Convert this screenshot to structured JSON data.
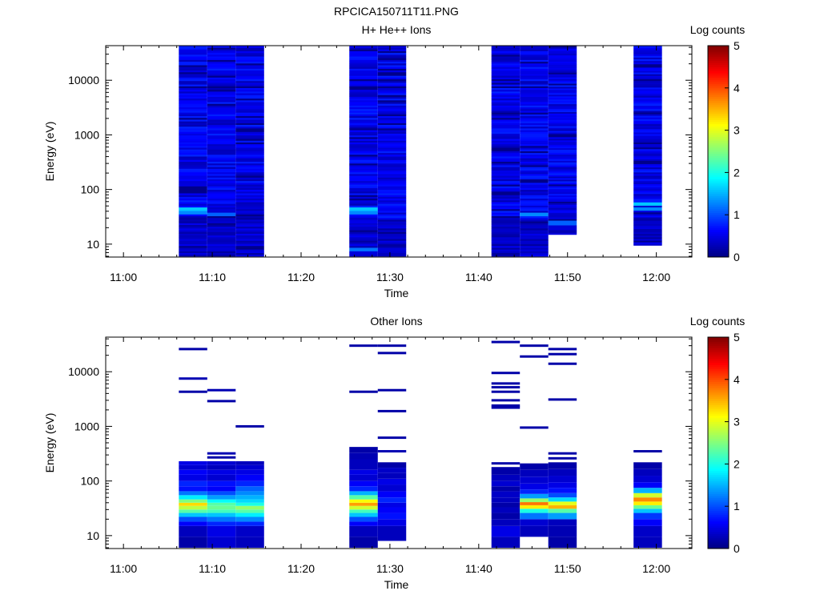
{
  "figure_title": "RPCICA150711T11.PNG",
  "colors": {
    "background": "#ffffff",
    "axis": "#000000",
    "colormap": "jet"
  },
  "chart_data": [
    {
      "type": "heatmap",
      "title": "H+ He++ Ions",
      "xlabel": "Time",
      "ylabel": "Energy (eV)",
      "yscale": "log",
      "xlim": [
        "10:58",
        "12:04"
      ],
      "ylim": [
        5.8,
        43000
      ],
      "x_ticks": [
        "11:00",
        "11:10",
        "11:20",
        "11:30",
        "11:40",
        "11:50",
        "12:00"
      ],
      "y_ticks": [
        "10",
        "100",
        "1000",
        "10000"
      ],
      "colorbar": {
        "label": "Log counts",
        "range": [
          0,
          5
        ],
        "ticks": [
          "0",
          "1",
          "2",
          "3",
          "4",
          "5"
        ]
      },
      "columns": [
        {
          "start": "11:06:14",
          "end": "11:09:26",
          "emin": 6,
          "emax": 43000,
          "peaks": [
            {
              "e": 45,
              "v": 1.6
            },
            {
              "e": 38,
              "v": 1.3
            }
          ]
        },
        {
          "start": "11:09:26",
          "end": "11:12:38",
          "emin": 6,
          "emax": 43000,
          "peaks": [
            {
              "e": 35,
              "v": 1.1
            }
          ]
        },
        {
          "start": "11:12:38",
          "end": "11:15:50",
          "emin": 6,
          "emax": 43000,
          "peaks": []
        },
        {
          "start": "11:25:26",
          "end": "11:28:38",
          "emin": 6,
          "emax": 43000,
          "peaks": [
            {
              "e": 45,
              "v": 1.6
            },
            {
              "e": 38,
              "v": 1.3
            },
            {
              "e": 8,
              "v": 1.2
            }
          ]
        },
        {
          "start": "11:28:38",
          "end": "11:31:50",
          "emin": 6,
          "emax": 43000,
          "peaks": []
        },
        {
          "start": "11:41:26",
          "end": "11:44:38",
          "emin": 6,
          "emax": 43000,
          "peaks": []
        },
        {
          "start": "11:44:38",
          "end": "11:47:50",
          "emin": 6,
          "emax": 43000,
          "peaks": [
            {
              "e": 35,
              "v": 1.3
            }
          ]
        },
        {
          "start": "11:47:50",
          "end": "11:51:02",
          "emin": 15,
          "emax": 43000,
          "peaks": [
            {
              "e": 25,
              "v": 1.1
            }
          ]
        },
        {
          "start": "11:57:26",
          "end": "12:00:38",
          "emin": 9.5,
          "emax": 43000,
          "peaks": [
            {
              "e": 55,
              "v": 1.6
            },
            {
              "e": 45,
              "v": 1.3
            }
          ]
        }
      ]
    },
    {
      "type": "heatmap",
      "title": "Other Ions",
      "xlabel": "Time",
      "ylabel": "Energy (eV)",
      "yscale": "log",
      "xlim": [
        "10:58",
        "12:04"
      ],
      "ylim": [
        5.8,
        43000
      ],
      "x_ticks": [
        "11:00",
        "11:10",
        "11:20",
        "11:30",
        "11:40",
        "11:50",
        "12:00"
      ],
      "y_ticks": [
        "10",
        "100",
        "1000",
        "10000"
      ],
      "colorbar": {
        "label": "Log counts",
        "range": [
          0,
          5
        ],
        "ticks": [
          "0",
          "1",
          "2",
          "3",
          "4",
          "5"
        ]
      },
      "columns": [
        {
          "start": "11:06:14",
          "end": "11:09:26",
          "emin": 6,
          "emax": 230,
          "cells": [
            [
              6,
              9.5,
              0.2
            ],
            [
              9.5,
              15,
              0.3
            ],
            [
              15,
              18,
              0.6
            ],
            [
              18,
              22,
              1.0
            ],
            [
              22,
              26,
              1.6
            ],
            [
              26,
              30,
              2.3
            ],
            [
              30,
              35,
              2.8
            ],
            [
              35,
              40,
              3.3
            ],
            [
              40,
              46,
              2.5
            ],
            [
              46,
              55,
              1.8
            ],
            [
              55,
              65,
              1.2
            ],
            [
              65,
              80,
              0.7
            ],
            [
              80,
              100,
              0.8
            ],
            [
              100,
              130,
              0.5
            ],
            [
              130,
              160,
              0.6
            ],
            [
              160,
              195,
              0.4
            ],
            [
              195,
              230,
              0.5
            ]
          ],
          "lines": [
            {
              "e": 26000,
              "v": 0.2
            },
            {
              "e": 7500,
              "v": 0.25
            },
            {
              "e": 4300,
              "v": 0.2
            }
          ]
        },
        {
          "start": "11:09:26",
          "end": "11:12:38",
          "emin": 6,
          "emax": 230,
          "cells": [
            [
              6,
              9.5,
              0.4
            ],
            [
              9.5,
              15,
              0.5
            ],
            [
              15,
              18,
              0.8
            ],
            [
              18,
              22,
              1.2
            ],
            [
              22,
              26,
              1.6
            ],
            [
              26,
              30,
              2.2
            ],
            [
              30,
              35,
              2.4
            ],
            [
              35,
              40,
              2.3
            ],
            [
              40,
              46,
              1.9
            ],
            [
              46,
              55,
              1.4
            ],
            [
              55,
              65,
              1.0
            ],
            [
              65,
              80,
              0.6
            ],
            [
              80,
              100,
              0.7
            ],
            [
              100,
              130,
              0.4
            ],
            [
              130,
              160,
              0.5
            ],
            [
              160,
              195,
              0.3
            ],
            [
              195,
              230,
              0.4
            ]
          ],
          "lines": [
            {
              "e": 4600,
              "v": 0.25
            },
            {
              "e": 2900,
              "v": 0.2
            },
            {
              "e": 320,
              "v": 0.25
            },
            {
              "e": 270,
              "v": 0.2
            }
          ]
        },
        {
          "start": "11:12:38",
          "end": "11:15:50",
          "emin": 6,
          "emax": 230,
          "cells": [
            [
              6,
              9.5,
              0.3
            ],
            [
              9.5,
              15,
              0.35
            ],
            [
              15,
              18,
              0.8
            ],
            [
              18,
              22,
              1.3
            ],
            [
              22,
              26,
              1.8
            ],
            [
              26,
              30,
              2.3
            ],
            [
              30,
              35,
              2.6
            ],
            [
              35,
              40,
              2.0
            ],
            [
              40,
              46,
              1.7
            ],
            [
              46,
              55,
              1.5
            ],
            [
              55,
              65,
              1.3
            ],
            [
              65,
              80,
              1.1
            ],
            [
              80,
              100,
              0.8
            ],
            [
              100,
              130,
              0.6
            ],
            [
              130,
              160,
              0.5
            ],
            [
              160,
              195,
              0.4
            ],
            [
              195,
              230,
              0.3
            ]
          ],
          "lines": [
            {
              "e": 1000,
              "v": 0.2
            }
          ]
        },
        {
          "start": "11:25:26",
          "end": "11:28:38",
          "emin": 6,
          "emax": 420,
          "cells": [
            [
              6,
              9.5,
              0.2
            ],
            [
              9.5,
              15,
              0.3
            ],
            [
              15,
              18,
              0.6
            ],
            [
              18,
              22,
              1.0
            ],
            [
              22,
              26,
              1.6
            ],
            [
              26,
              30,
              2.2
            ],
            [
              30,
              35,
              2.9
            ],
            [
              35,
              40,
              3.6
            ],
            [
              40,
              46,
              3.1
            ],
            [
              46,
              55,
              2.3
            ],
            [
              55,
              65,
              1.5
            ],
            [
              65,
              80,
              0.8
            ],
            [
              80,
              100,
              0.6
            ],
            [
              100,
              130,
              0.4
            ],
            [
              130,
              160,
              0.5
            ],
            [
              160,
              250,
              0.3
            ],
            [
              250,
              330,
              0.25
            ],
            [
              330,
              420,
              0.2
            ]
          ],
          "lines": [
            {
              "e": 30000,
              "v": 0.2
            },
            {
              "e": 4300,
              "v": 0.2
            }
          ]
        },
        {
          "start": "11:28:38",
          "end": "11:31:50",
          "emin": 8,
          "emax": 220,
          "cells": [
            [
              8,
              15,
              0.3
            ],
            [
              15,
              20,
              0.5
            ],
            [
              20,
              26,
              0.7
            ],
            [
              26,
              33,
              0.6
            ],
            [
              33,
              40,
              0.5
            ],
            [
              40,
              50,
              0.8
            ],
            [
              50,
              65,
              0.6
            ],
            [
              65,
              85,
              0.4
            ],
            [
              85,
              110,
              0.5
            ],
            [
              110,
              140,
              0.3
            ],
            [
              140,
              175,
              0.35
            ],
            [
              175,
              220,
              0.2
            ]
          ],
          "lines": [
            {
              "e": 30000,
              "v": 0.2
            },
            {
              "e": 22000,
              "v": 0.2
            },
            {
              "e": 4600,
              "v": 0.2
            },
            {
              "e": 1900,
              "v": 0.2
            },
            {
              "e": 620,
              "v": 0.2
            },
            {
              "e": 350,
              "v": 0.25
            }
          ]
        },
        {
          "start": "11:41:26",
          "end": "11:44:38",
          "emin": 6,
          "emax": 180,
          "cells": [
            [
              6,
              9.5,
              0.3
            ],
            [
              9.5,
              15,
              0.5
            ],
            [
              15,
              20,
              0.3
            ],
            [
              20,
              26,
              0.2
            ],
            [
              26,
              33,
              0.3
            ],
            [
              33,
              40,
              0.2
            ],
            [
              40,
              50,
              0.3
            ],
            [
              50,
              65,
              0.35
            ],
            [
              65,
              80,
              0.2
            ],
            [
              80,
              100,
              0.4
            ],
            [
              100,
              130,
              0.3
            ],
            [
              130,
              180,
              0.2
            ]
          ],
          "lines": [
            {
              "e": 35000,
              "v": 0.2
            },
            {
              "e": 9500,
              "v": 0.2
            },
            {
              "e": 6100,
              "v": 0.2
            },
            {
              "e": 5200,
              "v": 0.2
            },
            {
              "e": 4300,
              "v": 0.2
            },
            {
              "e": 3000,
              "v": 0.2
            },
            {
              "e": 2400,
              "v": 0.2
            },
            {
              "e": 2200,
              "v": 0.2
            },
            {
              "e": 210,
              "v": 0.2
            }
          ]
        },
        {
          "start": "11:44:38",
          "end": "11:47:50",
          "emin": 9.5,
          "emax": 210,
          "cells": [
            [
              9.5,
              15,
              0.3
            ],
            [
              15,
              20,
              0.4
            ],
            [
              20,
              26,
              1.2
            ],
            [
              26,
              31,
              2.0
            ],
            [
              31,
              36,
              3.2
            ],
            [
              36,
              41,
              3.8
            ],
            [
              41,
              48,
              2.6
            ],
            [
              48,
              58,
              1.4
            ],
            [
              58,
              70,
              0.8
            ],
            [
              70,
              90,
              0.5
            ],
            [
              90,
              120,
              0.4
            ],
            [
              120,
              160,
              0.3
            ],
            [
              160,
              210,
              0.2
            ]
          ],
          "lines": [
            {
              "e": 30000,
              "v": 0.2
            },
            {
              "e": 19000,
              "v": 0.2
            },
            {
              "e": 950,
              "v": 0.2
            }
          ]
        },
        {
          "start": "11:47:50",
          "end": "11:51:02",
          "emin": 6,
          "emax": 220,
          "cells": [
            [
              6,
              9.5,
              0.2
            ],
            [
              9.5,
              15,
              0.25
            ],
            [
              15,
              20,
              0.3
            ],
            [
              20,
              26,
              1.4
            ],
            [
              26,
              31,
              2.3
            ],
            [
              31,
              36,
              3.5
            ],
            [
              36,
              42,
              3.0
            ],
            [
              42,
              50,
              1.7
            ],
            [
              50,
              60,
              1.0
            ],
            [
              60,
              75,
              0.7
            ],
            [
              75,
              95,
              0.5
            ],
            [
              95,
              125,
              0.4
            ],
            [
              125,
              165,
              0.3
            ],
            [
              165,
              220,
              0.2
            ]
          ],
          "lines": [
            {
              "e": 26000,
              "v": 0.2
            },
            {
              "e": 21000,
              "v": 0.2
            },
            {
              "e": 14000,
              "v": 0.2
            },
            {
              "e": 3100,
              "v": 0.2
            },
            {
              "e": 320,
              "v": 0.2
            },
            {
              "e": 260,
              "v": 0.2
            }
          ]
        },
        {
          "start": "11:57:26",
          "end": "12:00:38",
          "emin": 6,
          "emax": 220,
          "cells": [
            [
              6,
              9.5,
              0.3
            ],
            [
              9.5,
              15,
              0.35
            ],
            [
              15,
              20,
              0.6
            ],
            [
              20,
              26,
              0.9
            ],
            [
              26,
              31,
              1.6
            ],
            [
              31,
              36,
              2.4
            ],
            [
              36,
              42,
              3.2
            ],
            [
              42,
              50,
              3.7
            ],
            [
              50,
              60,
              2.9
            ],
            [
              60,
              75,
              1.5
            ],
            [
              75,
              95,
              0.6
            ],
            [
              95,
              125,
              0.4
            ],
            [
              125,
              165,
              0.3
            ],
            [
              165,
              220,
              0.2
            ]
          ],
          "lines": [
            {
              "e": 350,
              "v": 0.2
            }
          ]
        }
      ]
    }
  ]
}
